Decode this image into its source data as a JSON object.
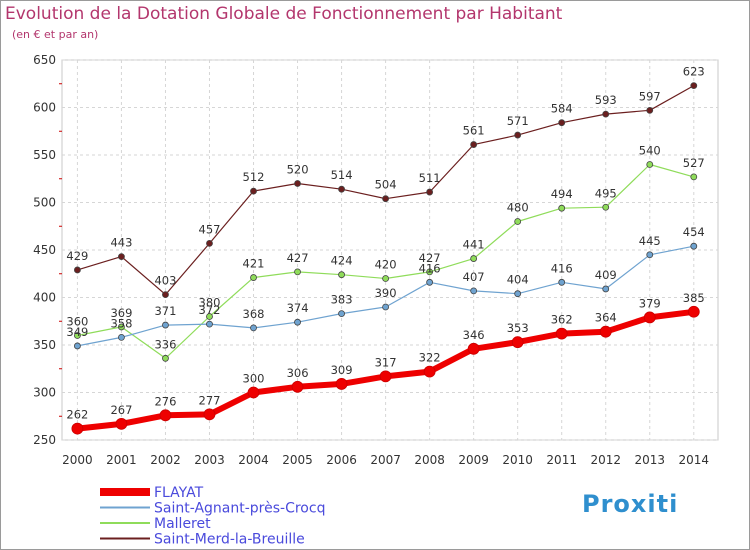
{
  "chart_data": {
    "type": "line",
    "title": "Evolution de la Dotation Globale de Fonctionnement par Habitant",
    "subtitle": "(en € et par an)",
    "xlabel": "",
    "ylabel": "",
    "ylim": [
      250,
      650
    ],
    "yticks": [
      250,
      300,
      350,
      400,
      450,
      500,
      550,
      600,
      650
    ],
    "x": [
      "2000",
      "2001",
      "2002",
      "2003",
      "2004",
      "2005",
      "2006",
      "2007",
      "2008",
      "2009",
      "2010",
      "2011",
      "2012",
      "2013",
      "2014"
    ],
    "grid": true,
    "legend_position": "bottom-left",
    "series": [
      {
        "name": "FLAYAT",
        "color": "#ee0000",
        "values": [
          262,
          267,
          276,
          277,
          300,
          306,
          309,
          317,
          322,
          346,
          353,
          362,
          364,
          379,
          385
        ]
      },
      {
        "name": "Saint-Agnant-près-Crocq",
        "color": "#6fa3d0",
        "values": [
          349,
          358,
          371,
          372,
          368,
          374,
          383,
          390,
          416,
          407,
          404,
          416,
          409,
          445,
          454
        ]
      },
      {
        "name": "Malleret",
        "color": "#8fdc5a",
        "values": [
          360,
          369,
          336,
          380,
          421,
          427,
          424,
          420,
          427,
          441,
          480,
          494,
          495,
          540,
          527
        ]
      },
      {
        "name": "Saint-Merd-la-Breuille",
        "color": "#6b1f1f",
        "values": [
          429,
          443,
          403,
          457,
          512,
          520,
          514,
          504,
          511,
          561,
          571,
          584,
          593,
          597,
          623
        ]
      }
    ]
  },
  "logo": {
    "text": "Proxiti"
  }
}
